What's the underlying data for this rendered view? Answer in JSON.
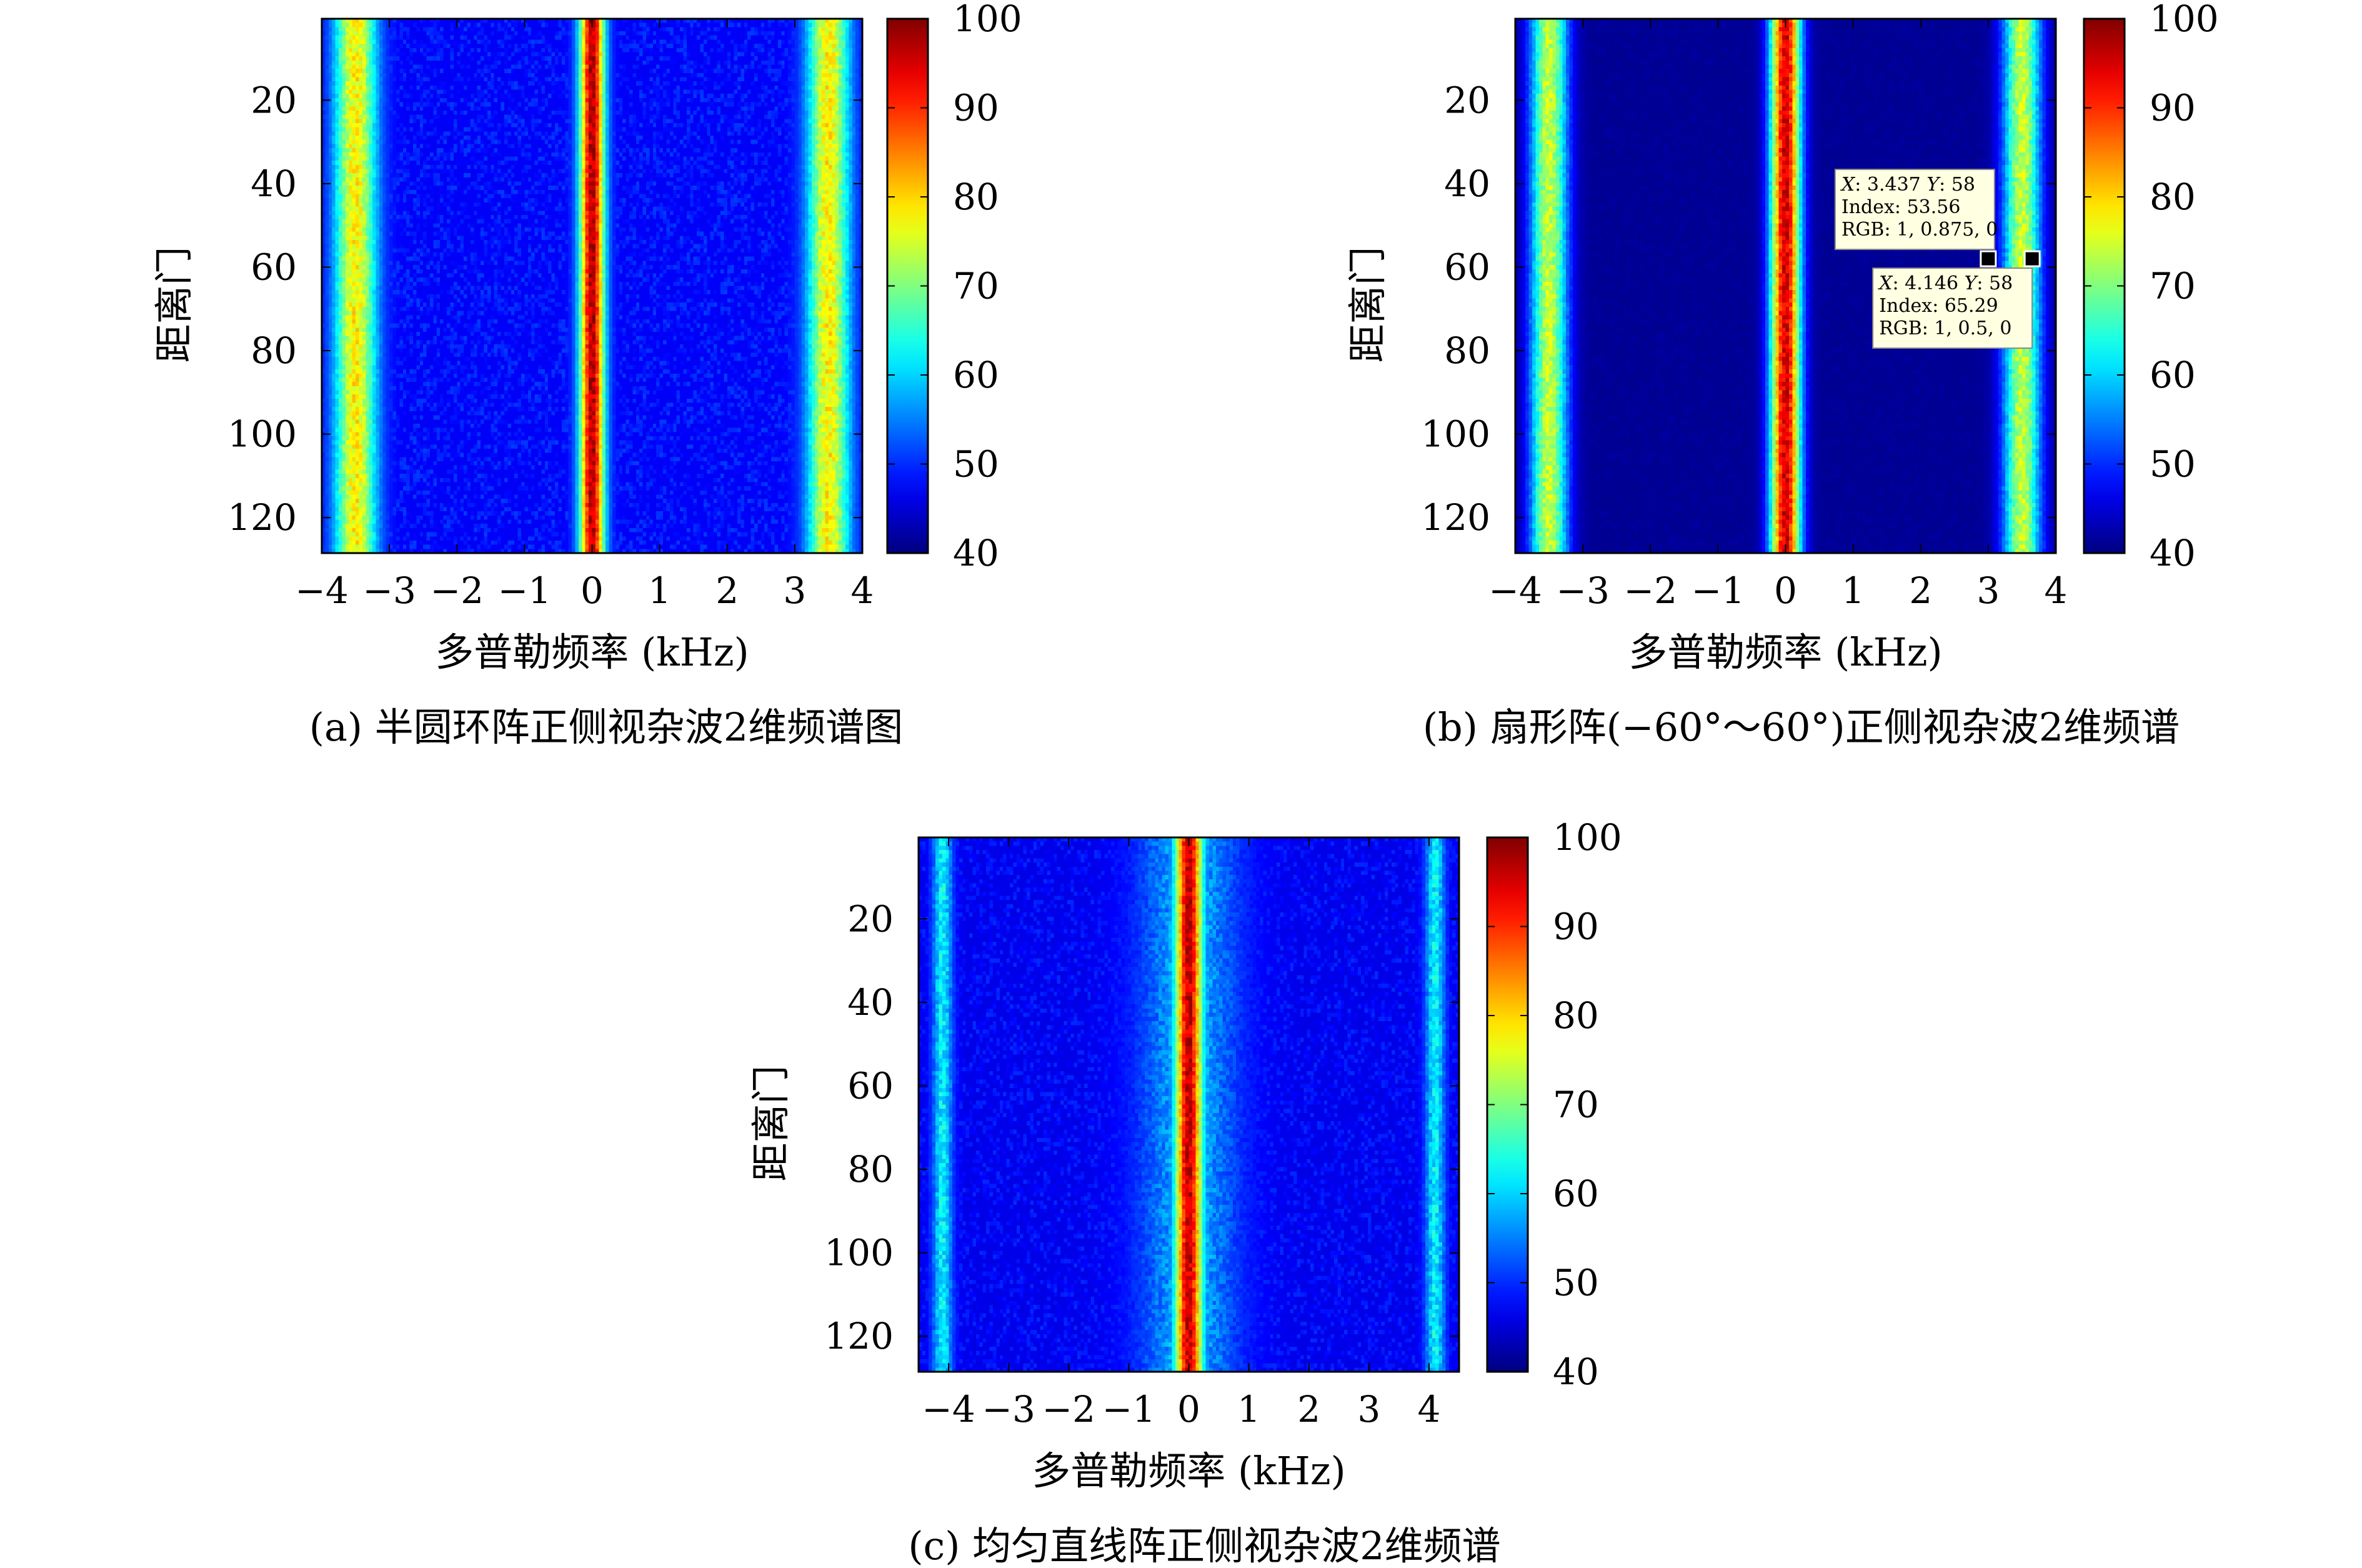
{
  "chart_data": [
    {
      "type": "heatmap",
      "caption": "(a) 半圆环阵正侧视杂波2维频谱图",
      "xlabel": "多普勒频率 (kHz)",
      "ylabel": "距离门",
      "xlim": [
        -4,
        4
      ],
      "ylim": [
        1,
        128
      ],
      "y_reversed": true,
      "xticks": [
        -4,
        -3,
        -2,
        -1,
        0,
        1,
        2,
        3,
        4
      ],
      "yticks": [
        20,
        40,
        60,
        80,
        100,
        120
      ],
      "clim": [
        40,
        100
      ],
      "colorbar_ticks": [
        100,
        90,
        80,
        70,
        60,
        50,
        40
      ],
      "colormap": "jet",
      "background_level": 47,
      "background_noise": 4,
      "ridges": [
        {
          "center_khz": 0.0,
          "width_khz": 0.13,
          "peak": 97
        },
        {
          "center_khz": -3.5,
          "width_khz": 0.22,
          "peak": 78
        },
        {
          "center_khz": 3.5,
          "width_khz": 0.22,
          "peak": 78
        }
      ]
    },
    {
      "type": "heatmap",
      "caption": "(b) 扇形阵(−60°～60°)正侧视杂波2维频谱",
      "xlabel": "多普勒频率 (kHz)",
      "ylabel": "距离门",
      "xlim": [
        -4,
        4
      ],
      "ylim": [
        1,
        128
      ],
      "y_reversed": true,
      "xticks": [
        -4,
        -3,
        -2,
        -1,
        0,
        1,
        2,
        3,
        4
      ],
      "yticks": [
        20,
        40,
        60,
        80,
        100,
        120
      ],
      "clim": [
        40,
        100
      ],
      "colorbar_ticks": [
        100,
        90,
        80,
        70,
        60,
        50,
        40
      ],
      "colormap": "jet",
      "background_level": 41,
      "background_noise": 1,
      "ridges": [
        {
          "center_khz": 0.0,
          "width_khz": 0.16,
          "peak": 95
        },
        {
          "center_khz": -3.5,
          "width_khz": 0.2,
          "peak": 74
        },
        {
          "center_khz": 3.5,
          "width_khz": 0.2,
          "peak": 74
        }
      ],
      "datatips": [
        {
          "x_label": "X",
          "x": "3.437",
          "y_label": "Y",
          "y": "58",
          "index": "Index: 53.56",
          "rgb": "RGB: 1, 0.875, 0",
          "marker_x": 3.0,
          "marker_y": 58,
          "placement": "upper-left"
        },
        {
          "x_label": "X",
          "x": "4.146",
          "y_label": "Y",
          "y": "58",
          "index": "Index: 65.29",
          "rgb": "RGB: 1, 0.5, 0",
          "marker_x": 3.65,
          "marker_y": 58,
          "placement": "lower-left"
        }
      ]
    },
    {
      "type": "heatmap",
      "caption": "(c) 均匀直线阵正侧视杂波2维频谱",
      "xlabel": "多普勒频率 (kHz)",
      "ylabel": "距离门",
      "xlim": [
        -4.5,
        4.5
      ],
      "ylim": [
        1,
        128
      ],
      "y_reversed": true,
      "xticks": [
        -4,
        -3,
        -2,
        -1,
        0,
        1,
        2,
        3,
        4
      ],
      "yticks": [
        20,
        40,
        60,
        80,
        100,
        120
      ],
      "clim": [
        40,
        100
      ],
      "colorbar_ticks": [
        100,
        90,
        80,
        70,
        60,
        50,
        40
      ],
      "colormap": "jet",
      "background_level": 46,
      "background_noise": 4,
      "ridges": [
        {
          "center_khz": 0.0,
          "width_khz": 0.17,
          "peak": 96
        },
        {
          "center_khz": 0.0,
          "width_khz": 0.6,
          "peak": 58
        },
        {
          "center_khz": -4.1,
          "width_khz": 0.12,
          "peak": 62
        },
        {
          "center_khz": 4.1,
          "width_khz": 0.12,
          "peak": 62
        }
      ]
    }
  ]
}
